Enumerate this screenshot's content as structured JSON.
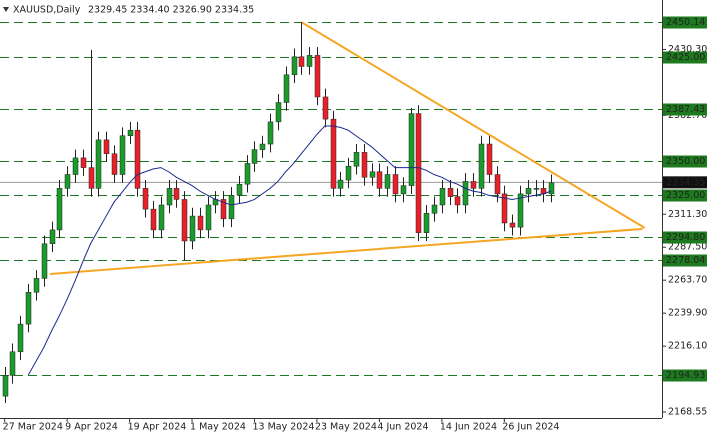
{
  "chart_data": {
    "type": "candlestick",
    "title": "XAUUSD,Daily",
    "subtitle": "2329.45 2334.40 2326.90 2334.35",
    "categories": [
      "27 Mar 2024",
      null,
      null,
      null,
      null,
      null,
      null,
      null,
      "9 Apr 2024",
      null,
      null,
      null,
      null,
      null,
      null,
      null,
      "19 Apr 2024",
      null,
      null,
      null,
      null,
      null,
      null,
      null,
      "1 May 2024",
      null,
      null,
      null,
      null,
      null,
      null,
      null,
      "13 May 2024",
      null,
      null,
      null,
      null,
      null,
      null,
      null,
      "23 May 2024",
      null,
      null,
      null,
      null,
      null,
      null,
      null,
      "4 Jun 2024",
      null,
      null,
      null,
      null,
      null,
      null,
      null,
      "14 Jun 2024",
      null,
      null,
      null,
      null,
      null,
      null,
      null,
      "26 Jun 2024",
      null,
      null,
      null,
      null,
      null,
      null
    ],
    "open": [
      2180,
      2195,
      2212,
      2232,
      2255,
      2265,
      2290,
      2300,
      2330,
      2340,
      2352,
      2345,
      2330,
      2365,
      2355,
      2340,
      2368,
      2372,
      2330,
      2315,
      2300,
      2318,
      2330,
      2322,
      2292,
      2310,
      2300,
      2318,
      2322,
      2308,
      2325,
      2333,
      2348,
      2358,
      2362,
      2378,
      2392,
      2412,
      2425,
      2418,
      2426,
      2396,
      2380,
      2330,
      2336,
      2346,
      2356,
      2338,
      2342,
      2330,
      2340,
      2326,
      2332,
      2384,
      2298,
      2312,
      2318,
      2330,
      2324,
      2318,
      2335,
      2330,
      2362,
      2340,
      2326,
      2305,
      2302,
      2326,
      2330,
      2330,
      2326
    ],
    "high": [
      2201,
      2218,
      2238,
      2261,
      2271,
      2296,
      2306,
      2336,
      2346,
      2358,
      2358,
      2430,
      2371,
      2371,
      2361,
      2374,
      2378,
      2378,
      2336,
      2321,
      2324,
      2336,
      2336,
      2328,
      2316,
      2316,
      2324,
      2328,
      2328,
      2331,
      2339,
      2354,
      2364,
      2368,
      2384,
      2398,
      2418,
      2431,
      2450,
      2432,
      2432,
      2402,
      2386,
      2342,
      2352,
      2362,
      2362,
      2348,
      2348,
      2346,
      2346,
      2338,
      2388,
      2390,
      2318,
      2324,
      2336,
      2336,
      2330,
      2341,
      2341,
      2368,
      2368,
      2346,
      2332,
      2311,
      2332,
      2336,
      2336,
      2336,
      2340
    ],
    "low": [
      2175,
      2189,
      2206,
      2226,
      2249,
      2259,
      2284,
      2294,
      2324,
      2334,
      2339,
      2324,
      2324,
      2349,
      2334,
      2334,
      2362,
      2324,
      2309,
      2294,
      2294,
      2312,
      2316,
      2278,
      2286,
      2294,
      2294,
      2312,
      2302,
      2302,
      2319,
      2327,
      2342,
      2352,
      2356,
      2372,
      2386,
      2406,
      2412,
      2412,
      2390,
      2374,
      2324,
      2324,
      2330,
      2340,
      2332,
      2332,
      2324,
      2324,
      2320,
      2320,
      2326,
      2292,
      2292,
      2306,
      2312,
      2318,
      2312,
      2312,
      2324,
      2324,
      2334,
      2320,
      2299,
      2296,
      2296,
      2320,
      2324,
      2320,
      2320
    ],
    "close": [
      2195,
      2212,
      2232,
      2255,
      2265,
      2290,
      2300,
      2330,
      2340,
      2352,
      2345,
      2330,
      2365,
      2355,
      2340,
      2368,
      2372,
      2330,
      2315,
      2300,
      2318,
      2330,
      2322,
      2292,
      2310,
      2300,
      2318,
      2322,
      2308,
      2325,
      2333,
      2348,
      2358,
      2362,
      2378,
      2392,
      2412,
      2425,
      2418,
      2426,
      2396,
      2380,
      2330,
      2336,
      2346,
      2356,
      2338,
      2342,
      2330,
      2340,
      2326,
      2332,
      2384,
      2298,
      2312,
      2318,
      2330,
      2324,
      2318,
      2335,
      2330,
      2362,
      2340,
      2326,
      2305,
      2302,
      2326,
      2330,
      2330,
      2326,
      2334
    ],
    "up_color": "#1a9b2c",
    "down_color": "#e8202a",
    "ma": {
      "color": "#1c2a8c",
      "values": [
        null,
        null,
        null,
        2195,
        2205,
        2215,
        2227,
        2238,
        2250,
        2263,
        2277,
        2290,
        2300,
        2310,
        2320,
        2327,
        2334,
        2340,
        2342,
        2344,
        2345,
        2342,
        2338,
        2335,
        2332,
        2328,
        2325,
        2322,
        2320,
        2318,
        2319,
        2320,
        2322,
        2326,
        2330,
        2335,
        2342,
        2348,
        2355,
        2362,
        2369,
        2375,
        2375,
        2374,
        2372,
        2368,
        2364,
        2360,
        2355,
        2350,
        2345,
        2345,
        2345,
        2345,
        2343,
        2340,
        2338,
        2335,
        2333,
        2330,
        2328,
        2327,
        2325,
        2324,
        2323,
        2322,
        2323,
        2324,
        2325,
        2326,
        2328
      ]
    },
    "trendlines": [
      {
        "color": "#f5a623",
        "x": [
          38,
          82
        ],
        "y": [
          2450,
          2301.4
        ]
      },
      {
        "color": "#f5a623",
        "x": [
          5.8,
          81.7
        ],
        "y": [
          2268.2,
          2300.7
        ]
      }
    ],
    "xlim": [
      -0.6,
      84.2
    ],
    "ylim": [
      2164.2,
      2466.0
    ],
    "yticks": [
      {
        "value": 2430.3,
        "label": "2430.30"
      },
      {
        "value": 2382.7,
        "label": "2382.70"
      },
      {
        "value": 2311.3,
        "label": "2311.30"
      },
      {
        "value": 2287.5,
        "label": "2287.50"
      },
      {
        "value": 2263.7,
        "label": "2263.70"
      },
      {
        "value": 2239.9,
        "label": "2239.90"
      },
      {
        "value": 2216.1,
        "label": "2216.10"
      },
      2168.55
    ],
    "levels": {
      "color": "#1e7a1e",
      "values": [
        2450.14,
        {
          "value": 2425,
          "label": "2425.00"
        },
        2387.43,
        {
          "value": 2350,
          "label": "2350.00"
        },
        {
          "value": 2325,
          "label": "2325.00"
        },
        {
          "value": 2294.8,
          "label": "2294.80"
        },
        2278.04,
        2194.93
      ]
    },
    "current_price": 2334.35
  }
}
